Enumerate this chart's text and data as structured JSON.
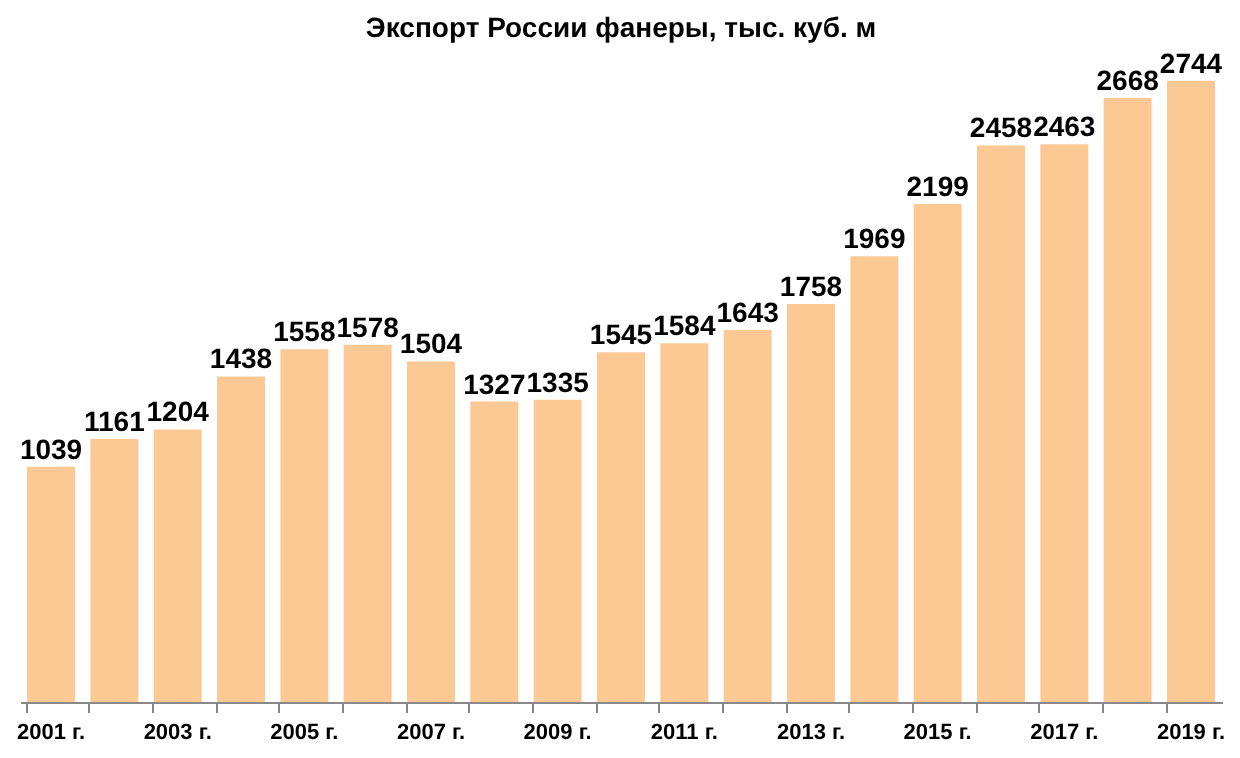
{
  "chart_data": {
    "type": "bar",
    "title": "Экспорт России фанеры, тыс. куб. м",
    "categories": [
      "2001 г.",
      null,
      "2003 г.",
      null,
      "2005 г.",
      null,
      "2007 г.",
      null,
      "2009 г.",
      null,
      "2011 г.",
      null,
      "2013 г.",
      null,
      "2015 г.",
      null,
      "2017 г.",
      null,
      "2019 г."
    ],
    "values": [
      1039,
      1161,
      1204,
      1438,
      1558,
      1578,
      1504,
      1327,
      1335,
      1545,
      1584,
      1643,
      1758,
      1969,
      2199,
      2458,
      2463,
      2668,
      2744
    ],
    "color": "#fcc995",
    "data_labels": true,
    "tick_labels": "x"
  }
}
